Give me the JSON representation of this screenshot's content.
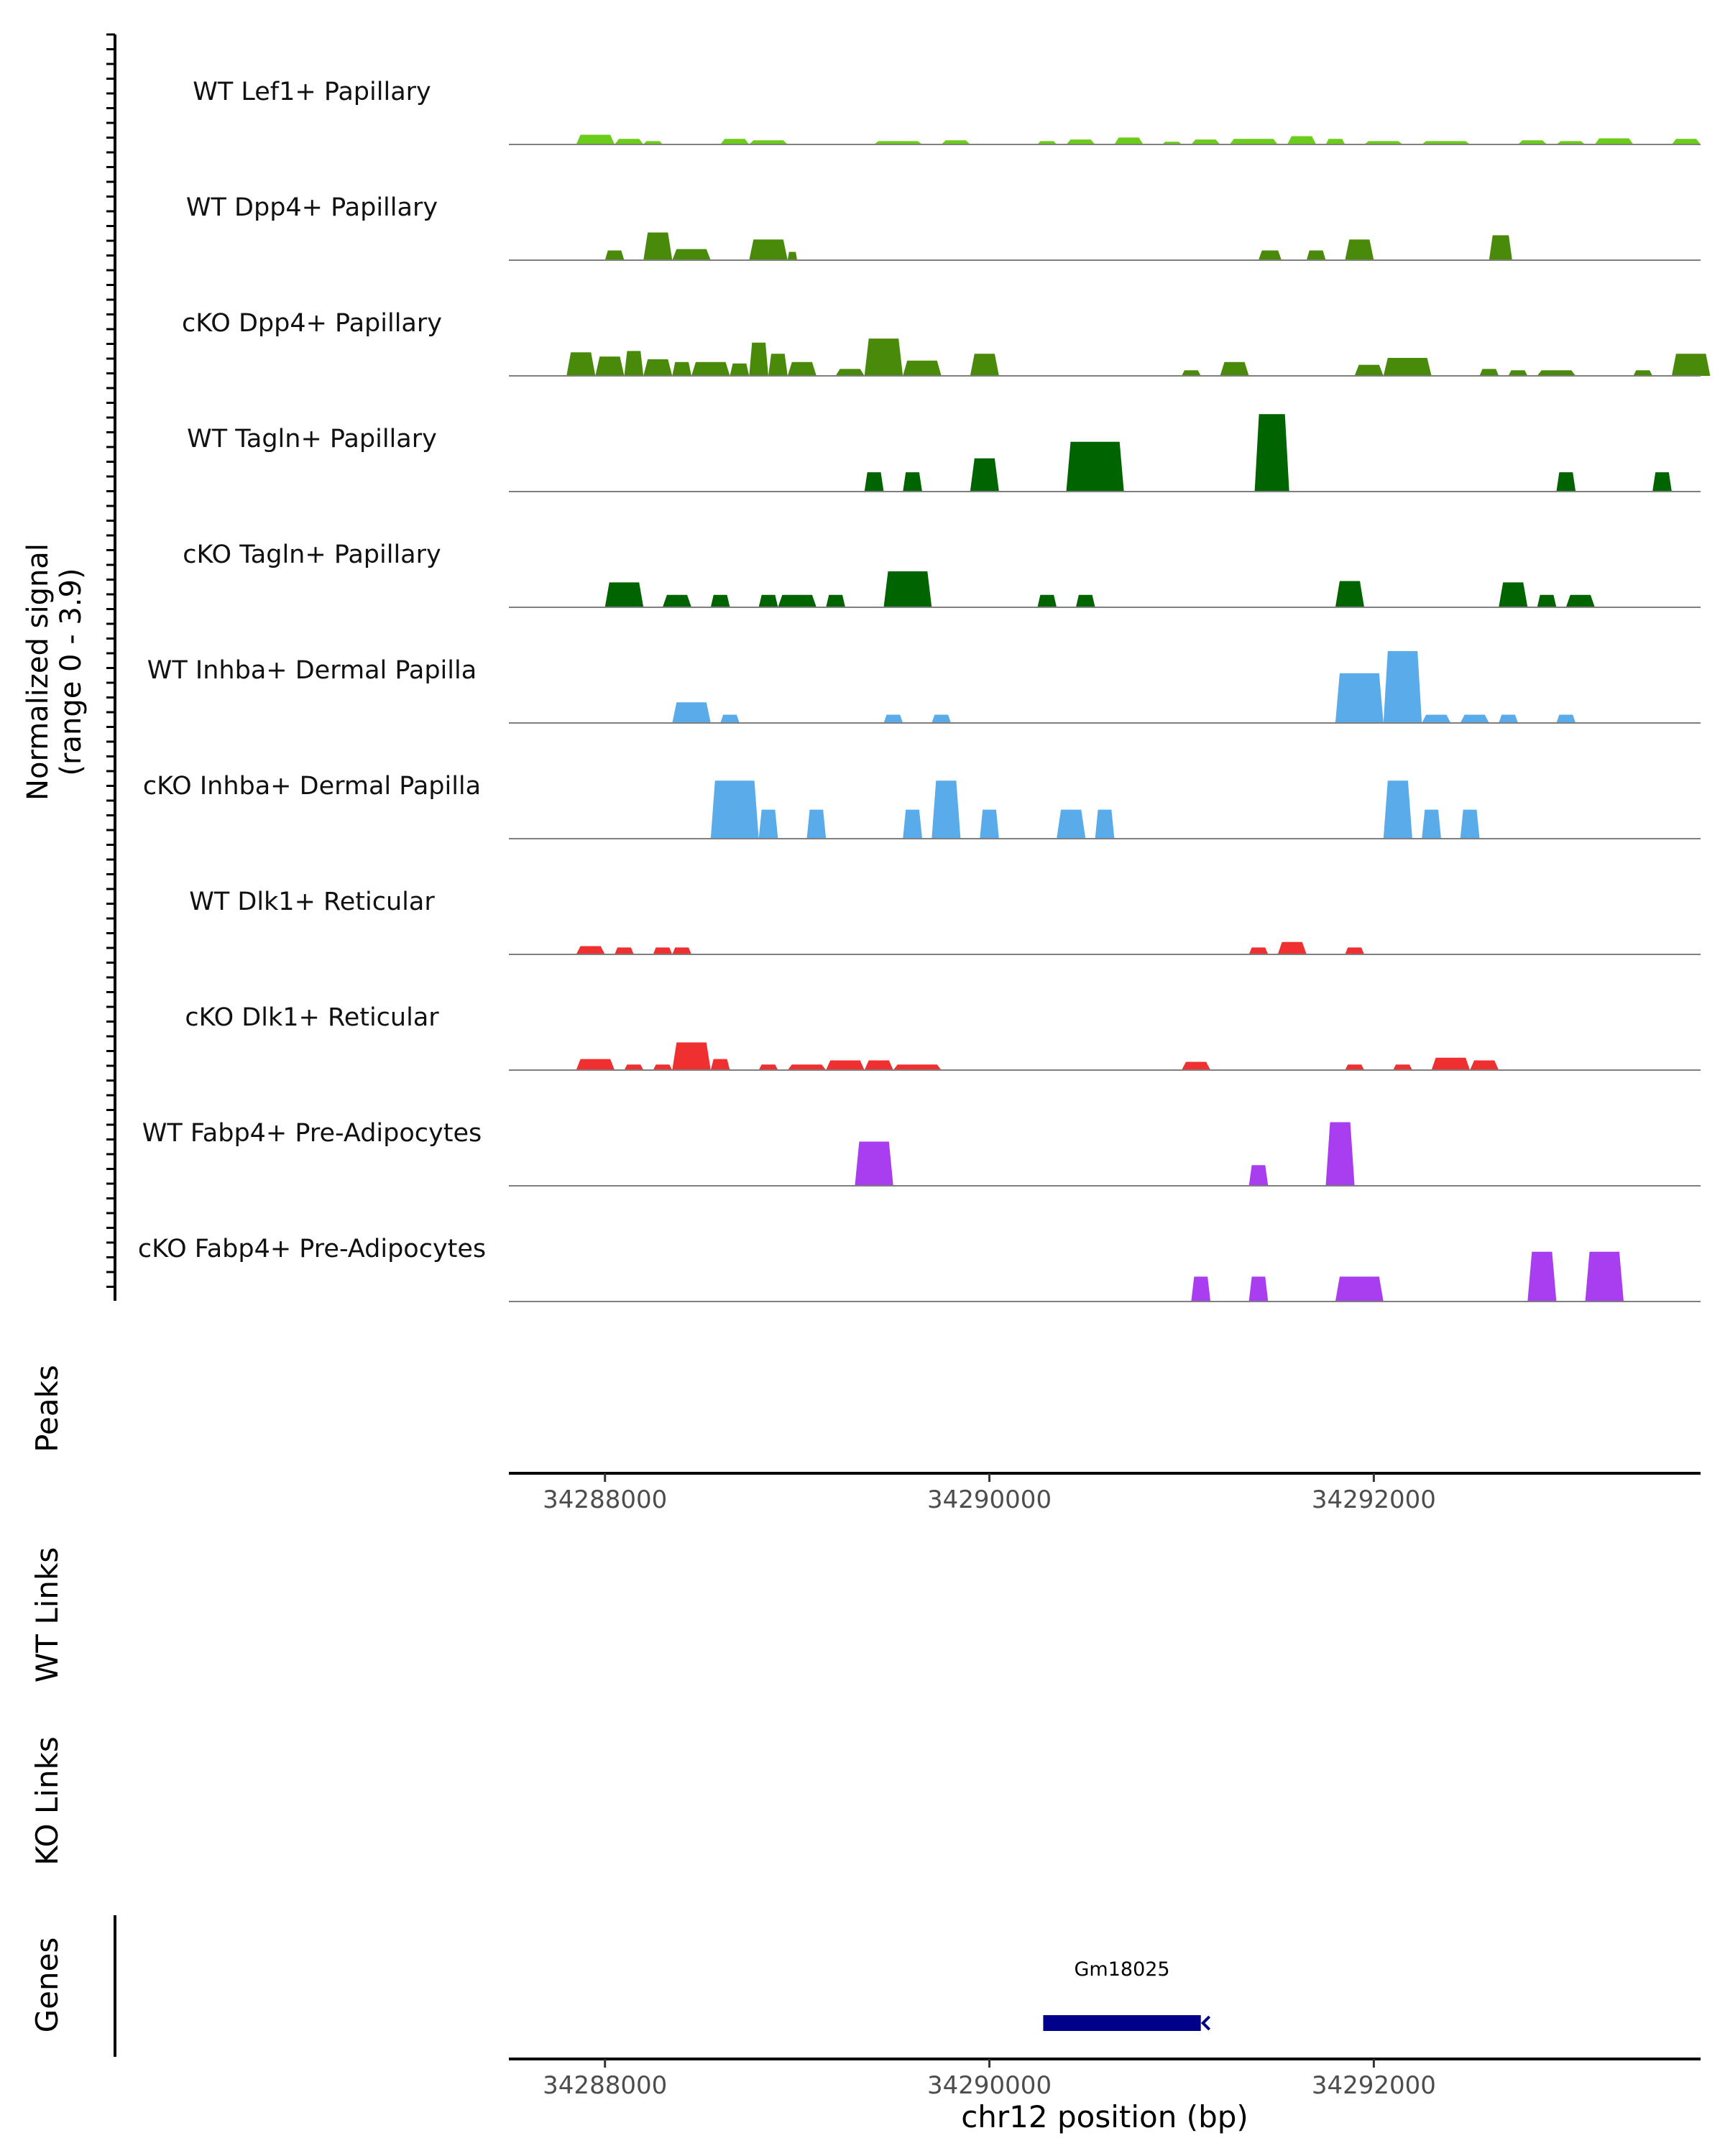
{
  "chart_data": {
    "type": "area",
    "title": "",
    "ylabel_line1": "Normalized signal",
    "ylabel_line2": "(range 0 - 3.9)",
    "y_range": [
      0,
      3.9
    ],
    "x_range": [
      34287500,
      34293700
    ],
    "xlabel": "chr12 position (bp)",
    "x_ticks": [
      34288000,
      34290000,
      34292000
    ],
    "x_tick_labels": [
      "34288000",
      "34290000",
      "34292000"
    ],
    "panel_labels": {
      "peaks": "Peaks",
      "wt_links": "WT Links",
      "ko_links": "KO Links",
      "genes": "Genes"
    },
    "genes": [
      {
        "name": "Gm18025",
        "start": 34290280,
        "end": 34291100,
        "strand": "-"
      }
    ],
    "tracks": [
      {
        "label": "WT Lef1+ Papillary",
        "color": "#6ccc1a",
        "peaks": [
          [
            34287850,
            34288050,
            0.35
          ],
          [
            34288050,
            34288200,
            0.2
          ],
          [
            34288200,
            34288300,
            0.12
          ],
          [
            34288600,
            34288750,
            0.2
          ],
          [
            34288750,
            34288950,
            0.15
          ],
          [
            34289400,
            34289650,
            0.12
          ],
          [
            34289750,
            34289900,
            0.15
          ],
          [
            34290250,
            34290350,
            0.12
          ],
          [
            34290400,
            34290550,
            0.18
          ],
          [
            34290650,
            34290800,
            0.25
          ],
          [
            34290900,
            34291000,
            0.1
          ],
          [
            34291050,
            34291200,
            0.18
          ],
          [
            34291250,
            34291500,
            0.2
          ],
          [
            34291550,
            34291700,
            0.3
          ],
          [
            34291750,
            34291850,
            0.2
          ],
          [
            34291950,
            34292150,
            0.12
          ],
          [
            34292250,
            34292500,
            0.12
          ],
          [
            34292750,
            34292900,
            0.15
          ],
          [
            34292950,
            34293100,
            0.12
          ],
          [
            34293150,
            34293350,
            0.22
          ],
          [
            34293550,
            34293700,
            0.2
          ]
        ]
      },
      {
        "label": "WT Dpp4+ Papillary",
        "color": "#4a8a0a",
        "peaks": [
          [
            34288000,
            34288100,
            0.35
          ],
          [
            34288200,
            34288350,
            1.0
          ],
          [
            34288350,
            34288550,
            0.4
          ],
          [
            34288750,
            34288950,
            0.75
          ],
          [
            34288950,
            34289000,
            0.3
          ],
          [
            34291400,
            34291520,
            0.35
          ],
          [
            34291650,
            34291750,
            0.35
          ],
          [
            34291850,
            34292000,
            0.75
          ],
          [
            34292600,
            34292720,
            0.9
          ]
        ]
      },
      {
        "label": "cKO Dpp4+ Papillary",
        "color": "#4a8a0a",
        "peaks": [
          [
            34287800,
            34287950,
            0.85
          ],
          [
            34287950,
            34288100,
            0.7
          ],
          [
            34288100,
            34288200,
            0.9
          ],
          [
            34288200,
            34288350,
            0.6
          ],
          [
            34288350,
            34288450,
            0.5
          ],
          [
            34288450,
            34288650,
            0.5
          ],
          [
            34288650,
            34288750,
            0.45
          ],
          [
            34288750,
            34288850,
            1.2
          ],
          [
            34288850,
            34288950,
            0.8
          ],
          [
            34288950,
            34289100,
            0.5
          ],
          [
            34289200,
            34289350,
            0.25
          ],
          [
            34289350,
            34289550,
            1.35
          ],
          [
            34289550,
            34289750,
            0.55
          ],
          [
            34289900,
            34290050,
            0.8
          ],
          [
            34291000,
            34291100,
            0.2
          ],
          [
            34291200,
            34291350,
            0.5
          ],
          [
            34291900,
            34292050,
            0.4
          ],
          [
            34292050,
            34292300,
            0.65
          ],
          [
            34292550,
            34292650,
            0.25
          ],
          [
            34292700,
            34292800,
            0.2
          ],
          [
            34292850,
            34293050,
            0.2
          ],
          [
            34293350,
            34293450,
            0.2
          ],
          [
            34293550,
            34293750,
            0.8
          ]
        ]
      },
      {
        "label": "WT Tagln+ Papillary",
        "color": "#006400",
        "peaks": [
          [
            34289350,
            34289450,
            0.7
          ],
          [
            34289550,
            34289650,
            0.7
          ],
          [
            34289900,
            34290050,
            1.2
          ],
          [
            34290400,
            34290700,
            1.8
          ],
          [
            34291380,
            34291560,
            2.8
          ],
          [
            34292950,
            34293050,
            0.7
          ],
          [
            34293450,
            34293550,
            0.7
          ]
        ]
      },
      {
        "label": "cKO Tagln+ Papillary",
        "color": "#006400",
        "peaks": [
          [
            34288000,
            34288200,
            0.9
          ],
          [
            34288300,
            34288450,
            0.45
          ],
          [
            34288550,
            34288650,
            0.45
          ],
          [
            34288800,
            34288900,
            0.45
          ],
          [
            34288900,
            34289100,
            0.45
          ],
          [
            34289150,
            34289250,
            0.45
          ],
          [
            34289450,
            34289700,
            1.3
          ],
          [
            34290250,
            34290350,
            0.45
          ],
          [
            34290450,
            34290550,
            0.45
          ],
          [
            34291800,
            34291950,
            0.95
          ],
          [
            34292650,
            34292800,
            0.9
          ],
          [
            34292850,
            34292950,
            0.45
          ],
          [
            34293000,
            34293150,
            0.45
          ]
        ]
      },
      {
        "label": "WT Inhba+ Dermal Papilla",
        "color": "#5aabea",
        "peaks": [
          [
            34288350,
            34288550,
            0.75
          ],
          [
            34288600,
            34288700,
            0.3
          ],
          [
            34289450,
            34289550,
            0.3
          ],
          [
            34289700,
            34289800,
            0.3
          ],
          [
            34291800,
            34292050,
            1.8
          ],
          [
            34292050,
            34292250,
            2.6
          ],
          [
            34292250,
            34292400,
            0.3
          ],
          [
            34292450,
            34292600,
            0.3
          ],
          [
            34292650,
            34292750,
            0.3
          ],
          [
            34292950,
            34293050,
            0.3
          ]
        ]
      },
      {
        "label": "cKO Inhba+ Dermal Papilla",
        "color": "#5aabea",
        "peaks": [
          [
            34288550,
            34288800,
            2.1
          ],
          [
            34288800,
            34288900,
            1.05
          ],
          [
            34289050,
            34289150,
            1.05
          ],
          [
            34289550,
            34289650,
            1.05
          ],
          [
            34289700,
            34289850,
            2.1
          ],
          [
            34289950,
            34290050,
            1.05
          ],
          [
            34290350,
            34290500,
            1.05
          ],
          [
            34290550,
            34290650,
            1.05
          ],
          [
            34292050,
            34292200,
            2.1
          ],
          [
            34292250,
            34292350,
            1.05
          ],
          [
            34292450,
            34292550,
            1.05
          ]
        ]
      },
      {
        "label": "WT Dlk1+ Reticular",
        "color": "#f03030",
        "peaks": [
          [
            34287850,
            34288000,
            0.3
          ],
          [
            34288050,
            34288150,
            0.25
          ],
          [
            34288250,
            34288350,
            0.25
          ],
          [
            34288350,
            34288450,
            0.25
          ],
          [
            34291350,
            34291450,
            0.25
          ],
          [
            34291500,
            34291650,
            0.45
          ],
          [
            34291850,
            34291950,
            0.25
          ]
        ]
      },
      {
        "label": "cKO Dlk1+ Reticular",
        "color": "#f03030",
        "peaks": [
          [
            34287850,
            34288050,
            0.4
          ],
          [
            34288100,
            34288200,
            0.2
          ],
          [
            34288250,
            34288350,
            0.2
          ],
          [
            34288350,
            34288550,
            1.0
          ],
          [
            34288550,
            34288650,
            0.4
          ],
          [
            34288800,
            34288900,
            0.2
          ],
          [
            34288950,
            34289150,
            0.2
          ],
          [
            34289150,
            34289350,
            0.35
          ],
          [
            34289350,
            34289500,
            0.35
          ],
          [
            34289500,
            34289750,
            0.2
          ],
          [
            34291000,
            34291150,
            0.3
          ],
          [
            34291850,
            34291950,
            0.2
          ],
          [
            34292100,
            34292200,
            0.2
          ],
          [
            34292300,
            34292500,
            0.45
          ],
          [
            34292500,
            34292650,
            0.35
          ]
        ]
      },
      {
        "label": "WT Fabp4+ Pre-Adipocytes",
        "color": "#a83ef0",
        "peaks": [
          [
            34289300,
            34289500,
            1.6
          ],
          [
            34291350,
            34291450,
            0.75
          ],
          [
            34291750,
            34291900,
            2.3
          ]
        ]
      },
      {
        "label": "cKO Fabp4+ Pre-Adipocytes",
        "color": "#a83ef0",
        "peaks": [
          [
            34291050,
            34291150,
            0.9
          ],
          [
            34291350,
            34291450,
            0.9
          ],
          [
            34291800,
            34292050,
            0.9
          ],
          [
            34292800,
            34292950,
            1.8
          ],
          [
            34293100,
            34293300,
            1.8
          ]
        ]
      }
    ]
  }
}
